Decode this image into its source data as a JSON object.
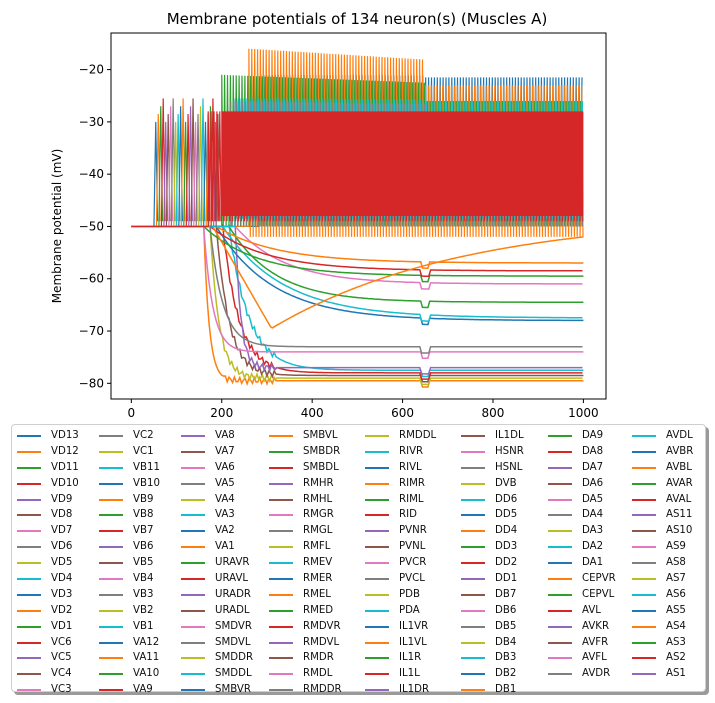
{
  "chart_data": {
    "type": "line",
    "title": "Membrane potentials of 134 neuron(s) (Muscles A)",
    "xlabel": "",
    "ylabel": "Membrane potential (mV)",
    "xlim": [
      -45,
      1050
    ],
    "ylim": [
      -83,
      -13
    ],
    "x_ticks": [
      0,
      200,
      400,
      600,
      800,
      1000
    ],
    "y_ticks": [
      -80,
      -70,
      -60,
      -50,
      -40,
      -30,
      -20
    ],
    "legend_position": "bottom",
    "legend_columns": [
      [
        "VD13",
        "VD12",
        "VD11",
        "VD10",
        "VD9",
        "VD8",
        "VD7",
        "VD6",
        "VD5",
        "VD4",
        "VD3",
        "VD2",
        "VD1",
        "VC6",
        "VC5",
        "VC4",
        "VC3"
      ],
      [
        "VC2",
        "VC1",
        "VB11",
        "VB10",
        "VB9",
        "VB8",
        "VB7",
        "VB6",
        "VB5",
        "VB4",
        "VB3",
        "VB2",
        "VB1",
        "VA12",
        "VA11",
        "VA10",
        "VA9"
      ],
      [
        "VA8",
        "VA7",
        "VA6",
        "VA5",
        "VA4",
        "VA3",
        "VA2",
        "VA1",
        "URAVR",
        "URAVL",
        "URADR",
        "URADL",
        "SMDVR",
        "SMDVL",
        "SMDDR",
        "SMDDL",
        "SMBVR"
      ],
      [
        "SMBVL",
        "SMBDR",
        "SMBDL",
        "RMHR",
        "RMHL",
        "RMGR",
        "RMGL",
        "RMFL",
        "RMEV",
        "RMER",
        "RMEL",
        "RMED",
        "RMDVR",
        "RMDVL",
        "RMDR",
        "RMDL",
        "RMDDR"
      ],
      [
        "RMDDL",
        "RIVR",
        "RIVL",
        "RIMR",
        "RIML",
        "RID",
        "PVNR",
        "PVNL",
        "PVCR",
        "PVCL",
        "PDB",
        "PDA",
        "IL1VR",
        "IL1VL",
        "IL1R",
        "IL1L",
        "IL1DR"
      ],
      [
        "IL1DL",
        "HSNR",
        "HSNL",
        "DVB",
        "DD6",
        "DD5",
        "DD4",
        "DD3",
        "DD2",
        "DD1",
        "DB7",
        "DB6",
        "DB5",
        "DB4",
        "DB3",
        "DB2",
        "DB1"
      ],
      [
        "DA9",
        "DA8",
        "DA7",
        "DA6",
        "DA5",
        "DA4",
        "DA3",
        "DA2",
        "DA1",
        "CEPVR",
        "CEPVL",
        "AVL",
        "AVKR",
        "AVFR",
        "AVFL",
        "AVDR"
      ],
      [
        "AVDL",
        "AVBR",
        "AVBL",
        "AVAR",
        "AVAL",
        "AS11",
        "AS10",
        "AS9",
        "AS8",
        "AS7",
        "AS6",
        "AS5",
        "AS4",
        "AS3",
        "AS2",
        "AS1"
      ]
    ],
    "palette": [
      "#1f77b4",
      "#ff7f0e",
      "#2ca02c",
      "#d62728",
      "#9467bd",
      "#8c564b",
      "#e377c2",
      "#7f7f7f",
      "#bcbd22",
      "#17becf"
    ],
    "series_oscillating": [
      {
        "spike_start": 280,
        "lower": -50,
        "upper": -21,
        "late_upper": -21.5
      },
      {
        "spike_start": 260,
        "lower": -52,
        "upper": -16,
        "late_upper": -23
      },
      {
        "spike_start": 200,
        "lower": -50,
        "upper": -21,
        "late_upper": -26
      },
      {
        "spike_start": 170,
        "lower": -49,
        "upper": -28,
        "late_upper": -28
      }
    ],
    "series_grey_band": {
      "lower": -50,
      "upper": -26,
      "late_upper": -28
    },
    "series_cyan_band": {
      "lower": -48.5,
      "upper": -25.5,
      "late_upper": -26
    },
    "series_decay": [
      {
        "final": -79.5,
        "color_index": 1
      },
      {
        "final": -79.0,
        "color_index": 8
      },
      {
        "final": -78.5,
        "color_index": 5
      },
      {
        "final": -78.0,
        "color_index": 3
      },
      {
        "final": -77.5,
        "color_index": 9
      },
      {
        "final": -77.0,
        "color_index": 4
      },
      {
        "final": -74.0,
        "color_index": 6
      },
      {
        "final": -73.0,
        "color_index": 7
      },
      {
        "final": -68.0,
        "color_index": 0
      },
      {
        "final": -67.5,
        "color_index": 9
      },
      {
        "final": -64.5,
        "color_index": 2
      },
      {
        "final": -61.0,
        "color_index": 6
      },
      {
        "final": -59.5,
        "color_index": 2
      },
      {
        "final": -58.5,
        "color_index": 3
      },
      {
        "final": -57.0,
        "color_index": 1
      }
    ],
    "series_rising": {
      "min": -69.5,
      "min_at": 310,
      "end": -52,
      "color_index": 1
    }
  }
}
